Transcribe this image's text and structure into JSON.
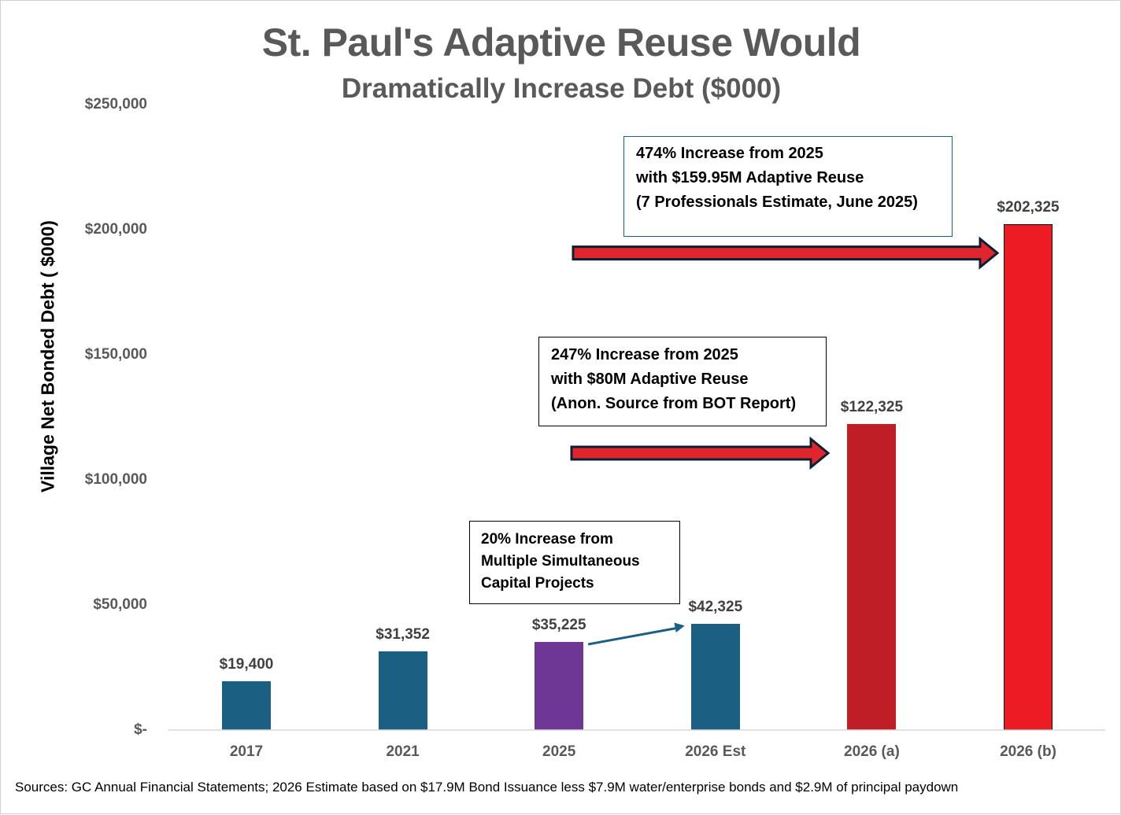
{
  "chart_data": {
    "type": "bar",
    "title": "St. Paul's Adaptive Reuse Would",
    "subtitle": "Dramatically Increase Debt ($000)",
    "xlabel": "",
    "ylabel": "Village Net Bonded Debt ( $000)",
    "ylim": [
      0,
      250000
    ],
    "y_ticks": [
      {
        "value": 0,
        "label": "$-"
      },
      {
        "value": 50000,
        "label": "$50,000"
      },
      {
        "value": 100000,
        "label": "$100,000"
      },
      {
        "value": 150000,
        "label": "$150,000"
      },
      {
        "value": 200000,
        "label": "$200,000"
      },
      {
        "value": 250000,
        "label": "$250,000"
      }
    ],
    "categories": [
      "2017",
      "2021",
      "2025",
      "2026 Est",
      "2026 (a)",
      "2026 (b)"
    ],
    "values": [
      19400,
      31352,
      35225,
      42325,
      122325,
      202325
    ],
    "value_labels": [
      "$19,400",
      "$31,352",
      "$35,225",
      "$42,325",
      "$122,325",
      "$202,325"
    ],
    "bar_colors": [
      "#1b5f82",
      "#1b5f82",
      "#6e3695",
      "#1b5f82",
      "#c01e26",
      "#ed1c24"
    ],
    "grid": false,
    "legend": "none",
    "annotations": [
      {
        "id": "a20",
        "lines": [
          "20% Increase from",
          "Multiple Simultaneous",
          "Capital Projects"
        ]
      },
      {
        "id": "a247",
        "lines": [
          "247% Increase from 2025",
          "with $80M Adaptive Reuse",
          "(Anon. Source from BOT Report)"
        ]
      },
      {
        "id": "a474",
        "lines": [
          "474% Increase from 2025",
          "with $159.95M Adaptive Reuse",
          "(7 Professionals Estimate, June 2025)"
        ]
      }
    ]
  },
  "source_note": "Sources: GC Annual Financial Statements; 2026 Estimate based on $17.9M Bond Issuance less $7.9M water/enterprise bonds and $2.9M of principal paydown",
  "colors": {
    "title": "#595959",
    "axis_text": "#595959",
    "axis_line": "#d9d9d9",
    "arrow_fill": "#e0262c",
    "arrow_outline": "#0b1f33",
    "small_arrow": "#1b5f82",
    "box_border_dark": "#000000",
    "box_border_blue": "#1b5f82"
  }
}
